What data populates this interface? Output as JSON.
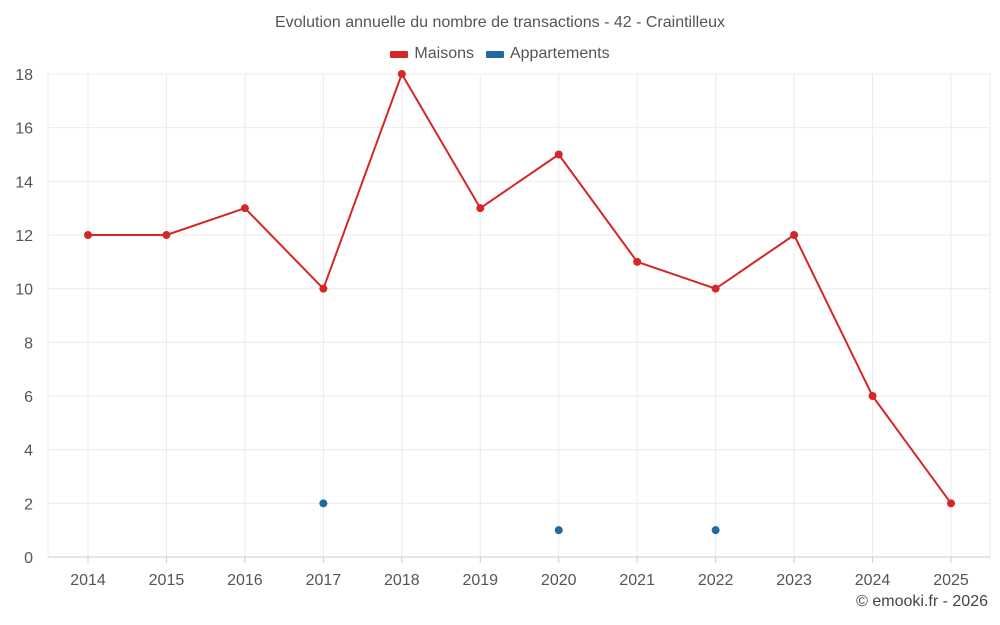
{
  "chart_data": {
    "type": "line",
    "title": "Evolution annuelle du nombre de transactions - 42 - Craintilleux",
    "categories": [
      "2014",
      "2015",
      "2016",
      "2017",
      "2018",
      "2019",
      "2020",
      "2021",
      "2022",
      "2023",
      "2024",
      "2025"
    ],
    "series": [
      {
        "name": "Maisons",
        "color": "#d62728",
        "values": [
          12,
          12,
          13,
          10,
          18,
          13,
          15,
          11,
          10,
          12,
          6,
          2
        ]
      },
      {
        "name": "Appartements",
        "color": "#1f6aa0",
        "values": [
          null,
          null,
          null,
          2,
          null,
          null,
          1,
          null,
          1,
          null,
          null,
          null
        ]
      }
    ],
    "yticks": [
      "0",
      "2",
      "4",
      "6",
      "8",
      "10",
      "12",
      "14",
      "16",
      "18"
    ],
    "ylim": [
      0,
      18
    ],
    "grid": true,
    "legend_position": "top-center"
  },
  "footer": {
    "credit": "© emooki.fr - 2026"
  }
}
